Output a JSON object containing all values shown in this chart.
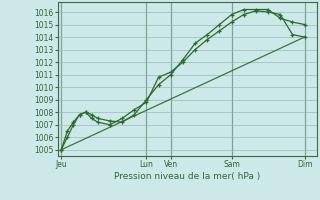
{
  "bg_color": "#cce8e8",
  "grid_color": "#99bbbb",
  "line_color": "#2d6a2d",
  "marker_color": "#2d6a2d",
  "title": "Pression niveau de la mer( hPa )",
  "ylabel_values": [
    1005,
    1006,
    1007,
    1008,
    1009,
    1010,
    1011,
    1012,
    1013,
    1014,
    1015,
    1016
  ],
  "ylim": [
    1004.5,
    1016.8
  ],
  "x_tick_labels": [
    "Jeu",
    "Lun",
    "Ven",
    "Sam",
    "Dim"
  ],
  "x_tick_positions": [
    0,
    7,
    9,
    14,
    20
  ],
  "xlim": [
    -0.3,
    21
  ],
  "vline_positions": [
    0,
    7,
    9,
    14,
    20
  ],
  "series1_x": [
    0,
    0.5,
    1,
    1.5,
    2,
    2.5,
    3,
    4,
    5,
    6,
    7,
    8,
    9,
    10,
    11,
    12,
    13,
    14,
    15,
    16,
    17,
    18,
    19,
    20
  ],
  "series1_y": [
    1005.0,
    1006.0,
    1007.0,
    1007.8,
    1008.0,
    1007.8,
    1007.5,
    1007.3,
    1007.2,
    1007.8,
    1009.0,
    1010.2,
    1011.0,
    1012.2,
    1013.5,
    1014.2,
    1015.0,
    1015.8,
    1016.2,
    1016.2,
    1016.2,
    1015.5,
    1015.2,
    1015.0
  ],
  "series2_x": [
    0,
    0.5,
    1,
    1.5,
    2,
    2.5,
    3,
    4,
    5,
    6,
    7,
    8,
    9,
    10,
    11,
    12,
    13,
    14,
    15,
    16,
    17,
    18,
    19,
    20
  ],
  "series2_y": [
    1005.0,
    1006.5,
    1007.2,
    1007.8,
    1008.0,
    1007.5,
    1007.2,
    1007.0,
    1007.5,
    1008.2,
    1008.8,
    1010.8,
    1011.2,
    1012.0,
    1013.0,
    1013.8,
    1014.5,
    1015.2,
    1015.8,
    1016.1,
    1016.0,
    1015.8,
    1014.2,
    1014.0
  ],
  "series3_x": [
    0,
    20
  ],
  "series3_y": [
    1005.0,
    1014.0
  ]
}
